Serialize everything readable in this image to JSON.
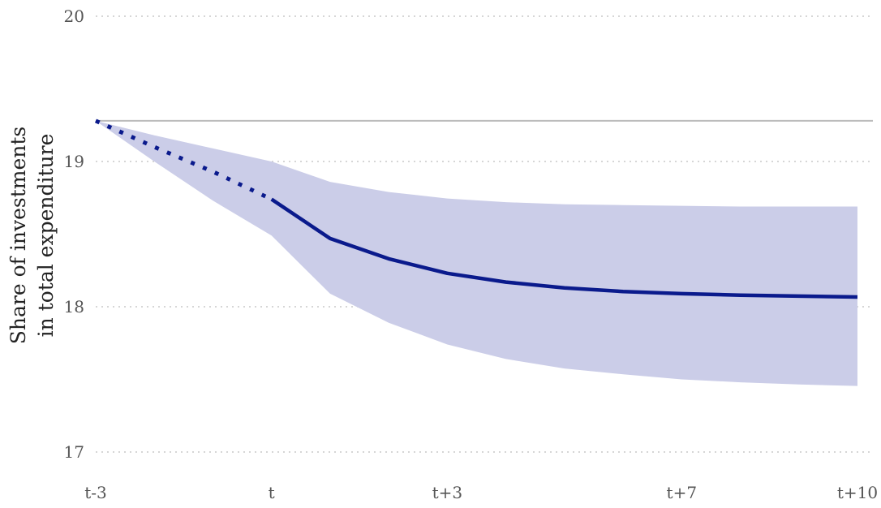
{
  "chart_data": {
    "type": "line",
    "title": "",
    "xlabel": "",
    "ylabel_lines": [
      "Share of investments",
      "in total expenditure"
    ],
    "x": [
      -3,
      -2,
      -1,
      0,
      1,
      2,
      3,
      4,
      5,
      6,
      7,
      8,
      9,
      10
    ],
    "x_tick_values": [
      -3,
      0,
      3,
      7,
      10
    ],
    "x_tick_labels": [
      "t-3",
      "t",
      "t+3",
      "t+7",
      "t+10"
    ],
    "y_ticks": [
      17,
      18,
      19,
      20
    ],
    "ylim": [
      17,
      20
    ],
    "xlim": [
      -3,
      10
    ],
    "grid": true,
    "reference_line": {
      "y": 19.28,
      "color": "#bbbbbb"
    },
    "series": [
      {
        "style": "dotted",
        "color": "#0a1a8c",
        "x": [
          -3,
          -2,
          -1,
          0
        ],
        "values": [
          19.28,
          19.1,
          18.93,
          18.74
        ]
      },
      {
        "style": "solid",
        "color": "#0a1a8c",
        "x": [
          0,
          1,
          2,
          3,
          4,
          5,
          6,
          7,
          8,
          9,
          10
        ],
        "values": [
          18.74,
          18.47,
          18.33,
          18.23,
          18.17,
          18.13,
          18.105,
          18.09,
          18.08,
          18.073,
          18.067
        ]
      }
    ],
    "confidence_band": {
      "color": "#cbcde8",
      "x": [
        -3,
        -2,
        -1,
        0,
        1,
        2,
        3,
        4,
        5,
        6,
        7,
        8,
        9,
        10
      ],
      "upper": [
        19.28,
        19.18,
        19.09,
        19.0,
        18.86,
        18.79,
        18.745,
        18.72,
        18.705,
        18.7,
        18.695,
        18.69,
        18.69,
        18.69
      ],
      "lower": [
        19.28,
        19.0,
        18.73,
        18.49,
        18.09,
        17.89,
        17.74,
        17.64,
        17.575,
        17.535,
        17.5,
        17.48,
        17.465,
        17.455
      ]
    }
  }
}
